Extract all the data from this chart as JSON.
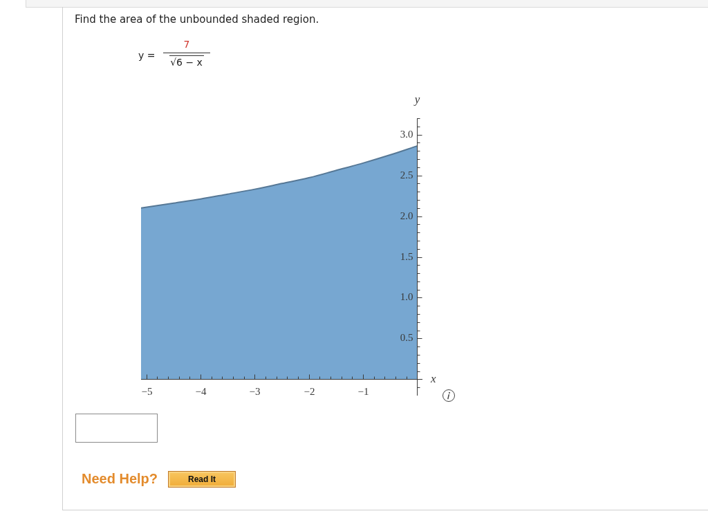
{
  "chart_data": {
    "type": "area",
    "title": "Find the area of the unbounded shaded region.",
    "xlabel": "x",
    "ylabel": "y",
    "annotations": [
      "y =",
      "7",
      "√6 − x",
      "Need Help?",
      "Read It"
    ],
    "x": [
      -5.1,
      -4.5,
      -4,
      -3.5,
      -3,
      -2.5,
      -2,
      -1.5,
      -1,
      -0.5,
      0
    ],
    "series": [
      {
        "color": "#77a7d1",
        "values": [
          2.1,
          2.16,
          2.21,
          2.27,
          2.33,
          2.4,
          2.47,
          2.56,
          2.65,
          2.75,
          2.86
        ]
      }
    ],
    "xlim": [
      -5.1,
      0.1
    ],
    "ylim": [
      -0.2,
      3.2
    ],
    "xticks": [
      {
        "value": -5,
        "label": "−5"
      },
      {
        "value": -4.8,
        "label": null
      },
      {
        "value": -4.6,
        "label": null
      },
      {
        "value": -4.4,
        "label": null
      },
      {
        "value": -4.2,
        "label": null
      },
      {
        "value": -4,
        "label": "−4"
      },
      {
        "value": -3.8,
        "label": null
      },
      {
        "value": -3.6,
        "label": null
      },
      {
        "value": -3.4,
        "label": null
      },
      {
        "value": -3.2,
        "label": null
      },
      {
        "value": -3,
        "label": "−3"
      },
      {
        "value": -2.8,
        "label": null
      },
      {
        "value": -2.6,
        "label": null
      },
      {
        "value": -2.4,
        "label": null
      },
      {
        "value": -2.2,
        "label": null
      },
      {
        "value": -2,
        "label": "−2"
      },
      {
        "value": -1.8,
        "label": null
      },
      {
        "value": -1.6,
        "label": null
      },
      {
        "value": -1.4,
        "label": null
      },
      {
        "value": -1.2,
        "label": null
      },
      {
        "value": -1,
        "label": "−1"
      },
      {
        "value": -0.8,
        "label": null
      },
      {
        "value": -0.6,
        "label": null
      },
      {
        "value": -0.4,
        "label": null
      },
      {
        "value": -0.2,
        "label": null
      }
    ],
    "yticks": [
      {
        "value": -0.1,
        "label": null
      },
      {
        "value": 0.1,
        "label": null
      },
      {
        "value": 0.2,
        "label": null
      },
      {
        "value": 0.3,
        "label": null
      },
      {
        "value": 0.4,
        "label": null
      },
      0.5,
      {
        "value": 0.6,
        "label": null
      },
      {
        "value": 0.7,
        "label": null
      },
      {
        "value": 0.8,
        "label": null
      },
      {
        "value": 0.9,
        "label": null
      },
      {
        "value": 1,
        "label": "1.0"
      },
      {
        "value": 1.1,
        "label": null
      },
      {
        "value": 1.2,
        "label": null
      },
      {
        "value": 1.3,
        "label": null
      },
      {
        "value": 1.4,
        "label": null
      },
      1.5,
      {
        "value": 1.6,
        "label": null
      },
      {
        "value": 1.7,
        "label": null
      },
      {
        "value": 1.8,
        "label": null
      },
      {
        "value": 1.9,
        "label": null
      },
      {
        "value": 2,
        "label": "2.0"
      },
      {
        "value": 2.1,
        "label": null
      },
      {
        "value": 2.2,
        "label": null
      },
      {
        "value": 2.3,
        "label": null
      },
      {
        "value": 2.4,
        "label": null
      },
      2.5,
      {
        "value": 2.6,
        "label": null
      },
      {
        "value": 2.7,
        "label": null
      },
      {
        "value": 2.8,
        "label": null
      },
      {
        "value": 2.9,
        "label": null
      },
      {
        "value": 3,
        "label": "3.0"
      },
      {
        "value": 3.1,
        "label": null
      },
      {
        "value": 3.2,
        "label": null
      }
    ]
  }
}
